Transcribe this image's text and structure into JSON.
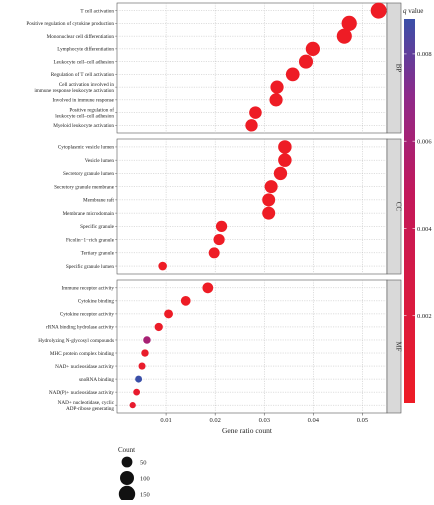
{
  "chart_data": {
    "type": "scatter",
    "xlabel": "Gene ratio count",
    "xlim": [
      0.0,
      0.055
    ],
    "xticks": [
      0.01,
      0.02,
      0.03,
      0.04,
      0.05
    ],
    "xtick_labels": [
      "0.01",
      "0.02",
      "0.03",
      "0.04",
      "0.05"
    ],
    "grid": true,
    "color_legend": {
      "title_italic": "q",
      "title_rest": " value",
      "range": [
        0.0,
        0.0088
      ],
      "ticks": [
        0.002,
        0.004,
        0.006,
        0.008
      ],
      "tick_labels": [
        "0.002",
        "0.004",
        "0.006",
        "0.008"
      ],
      "low_color": "#ee1c25",
      "high_color": "#3a4fa8",
      "placement": "right"
    },
    "size_legend": {
      "title": "Count",
      "values": [
        50,
        100,
        150
      ],
      "labels": [
        "50",
        "100",
        "150"
      ],
      "placement": "bottom-left"
    },
    "panels": [
      {
        "name": "BP",
        "terms": [
          {
            "term": "T cell activation",
            "x": 0.0533,
            "count": 140,
            "q": 0.0
          },
          {
            "term": "Positive regulation of cytokine production",
            "x": 0.0473,
            "count": 125,
            "q": 0.0
          },
          {
            "term": "Mononuclear cell differentiation",
            "x": 0.0463,
            "count": 122,
            "q": 0.0
          },
          {
            "term": "Lymphocyte differentiation",
            "x": 0.0399,
            "count": 105,
            "q": 0.0
          },
          {
            "term": "Leukocyte cell–cell adhesion",
            "x": 0.0385,
            "count": 102,
            "q": 0.0
          },
          {
            "term": "Regulation of T cell activation",
            "x": 0.0358,
            "count": 95,
            "q": 0.0
          },
          {
            "term": "Cell activation involved in\nimmune response leukocyte activation",
            "x": 0.0326,
            "count": 86,
            "q": 0.0
          },
          {
            "term": "Involved in immune response",
            "x": 0.0324,
            "count": 86,
            "q": 0.0
          },
          {
            "term": "Positive regulation of\nleukocyte cell–cell adhesion",
            "x": 0.0282,
            "count": 75,
            "q": 0.0
          },
          {
            "term": "Myeloid leukocyte activation",
            "x": 0.0274,
            "count": 72,
            "q": 0.0
          }
        ]
      },
      {
        "name": "CC",
        "terms": [
          {
            "term": "Cytoplasmic vesicle lumen",
            "x": 0.0342,
            "count": 91,
            "q": 0.0
          },
          {
            "term": "Vesicle lumen",
            "x": 0.0342,
            "count": 91,
            "q": 0.0
          },
          {
            "term": "Secretory granule lumen",
            "x": 0.0333,
            "count": 88,
            "q": 0.0
          },
          {
            "term": "Secretory granule membrane",
            "x": 0.0314,
            "count": 83,
            "q": 0.0
          },
          {
            "term": "Membrane raft",
            "x": 0.0309,
            "count": 82,
            "q": 0.0
          },
          {
            "term": "Membrane microdomain",
            "x": 0.0309,
            "count": 82,
            "q": 0.0
          },
          {
            "term": "Specific granule",
            "x": 0.0213,
            "count": 56,
            "q": 0.0
          },
          {
            "term": "Ficolin−1−rich granule",
            "x": 0.0208,
            "count": 55,
            "q": 0.0
          },
          {
            "term": "Tertiary granule",
            "x": 0.0198,
            "count": 52,
            "q": 0.0
          },
          {
            "term": "Specific granule lumen",
            "x": 0.0093,
            "count": 25,
            "q": 0.0
          }
        ]
      },
      {
        "name": "MF",
        "terms": [
          {
            "term": "Immune receptor activity",
            "x": 0.0185,
            "count": 49,
            "q": 0.0
          },
          {
            "term": "Cytokine binding",
            "x": 0.014,
            "count": 37,
            "q": 0.0
          },
          {
            "term": "Cytokine receptor activity",
            "x": 0.0105,
            "count": 28,
            "q": 0.0001
          },
          {
            "term": "rRNA binding hydrolase activity",
            "x": 0.0085,
            "count": 22,
            "q": 0.0003
          },
          {
            "term": "Hydrolyzing N-glycosyl compounds",
            "x": 0.0061,
            "count": 16,
            "q": 0.006
          },
          {
            "term": "MHC protein complex binding",
            "x": 0.0057,
            "count": 15,
            "q": 0.0005
          },
          {
            "term": "NAD+ nucleosidase activity",
            "x": 0.0051,
            "count": 13,
            "q": 0.0006
          },
          {
            "term": "snoRNA binding",
            "x": 0.0044,
            "count": 12,
            "q": 0.0088
          },
          {
            "term": "NAD(P)+ nucleosidase activity",
            "x": 0.004,
            "count": 11,
            "q": 0.0007
          },
          {
            "term": "NAD+ nucleotidase, cyclic\nADP-ribose generating",
            "x": 0.0032,
            "count": 8,
            "q": 0.0008
          }
        ]
      }
    ]
  }
}
